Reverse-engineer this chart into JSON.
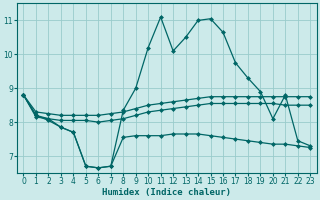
{
  "xlabel": "Humidex (Indice chaleur)",
  "bg_color": "#cceaea",
  "grid_color": "#99cccc",
  "line_color": "#006666",
  "xlim": [
    -0.5,
    23.5
  ],
  "ylim": [
    6.5,
    11.5
  ],
  "yticks": [
    7,
    8,
    9,
    10,
    11
  ],
  "xticks": [
    0,
    1,
    2,
    3,
    4,
    5,
    6,
    7,
    8,
    9,
    10,
    11,
    12,
    13,
    14,
    15,
    16,
    17,
    18,
    19,
    20,
    21,
    22,
    23
  ],
  "x": [
    0,
    1,
    2,
    3,
    4,
    5,
    6,
    7,
    8,
    9,
    10,
    11,
    12,
    13,
    14,
    15,
    16,
    17,
    18,
    19,
    20,
    21,
    22,
    23
  ],
  "line1_y": [
    8.8,
    8.2,
    8.1,
    7.85,
    7.7,
    6.7,
    6.65,
    6.7,
    8.35,
    9.0,
    10.2,
    11.1,
    10.1,
    10.5,
    11.0,
    11.05,
    10.65,
    9.75,
    9.3,
    8.9,
    8.1,
    8.8,
    7.45,
    7.3
  ],
  "line2_y": [
    8.8,
    8.3,
    8.25,
    8.2,
    8.2,
    8.2,
    8.2,
    8.25,
    8.3,
    8.4,
    8.5,
    8.55,
    8.6,
    8.65,
    8.7,
    8.75,
    8.75,
    8.75,
    8.75,
    8.75,
    8.75,
    8.75,
    8.75,
    8.75
  ],
  "line3_y": [
    8.8,
    8.15,
    8.1,
    8.05,
    8.05,
    8.05,
    8.0,
    8.05,
    8.1,
    8.2,
    8.3,
    8.35,
    8.4,
    8.45,
    8.5,
    8.55,
    8.55,
    8.55,
    8.55,
    8.55,
    8.55,
    8.5,
    8.5,
    8.5
  ],
  "line4_y": [
    8.8,
    8.2,
    8.05,
    7.85,
    7.7,
    6.7,
    6.65,
    6.7,
    7.55,
    7.6,
    7.6,
    7.6,
    7.65,
    7.65,
    7.65,
    7.6,
    7.55,
    7.5,
    7.45,
    7.4,
    7.35,
    7.35,
    7.3,
    7.25
  ],
  "marker_size": 2.5,
  "linewidth": 0.9
}
